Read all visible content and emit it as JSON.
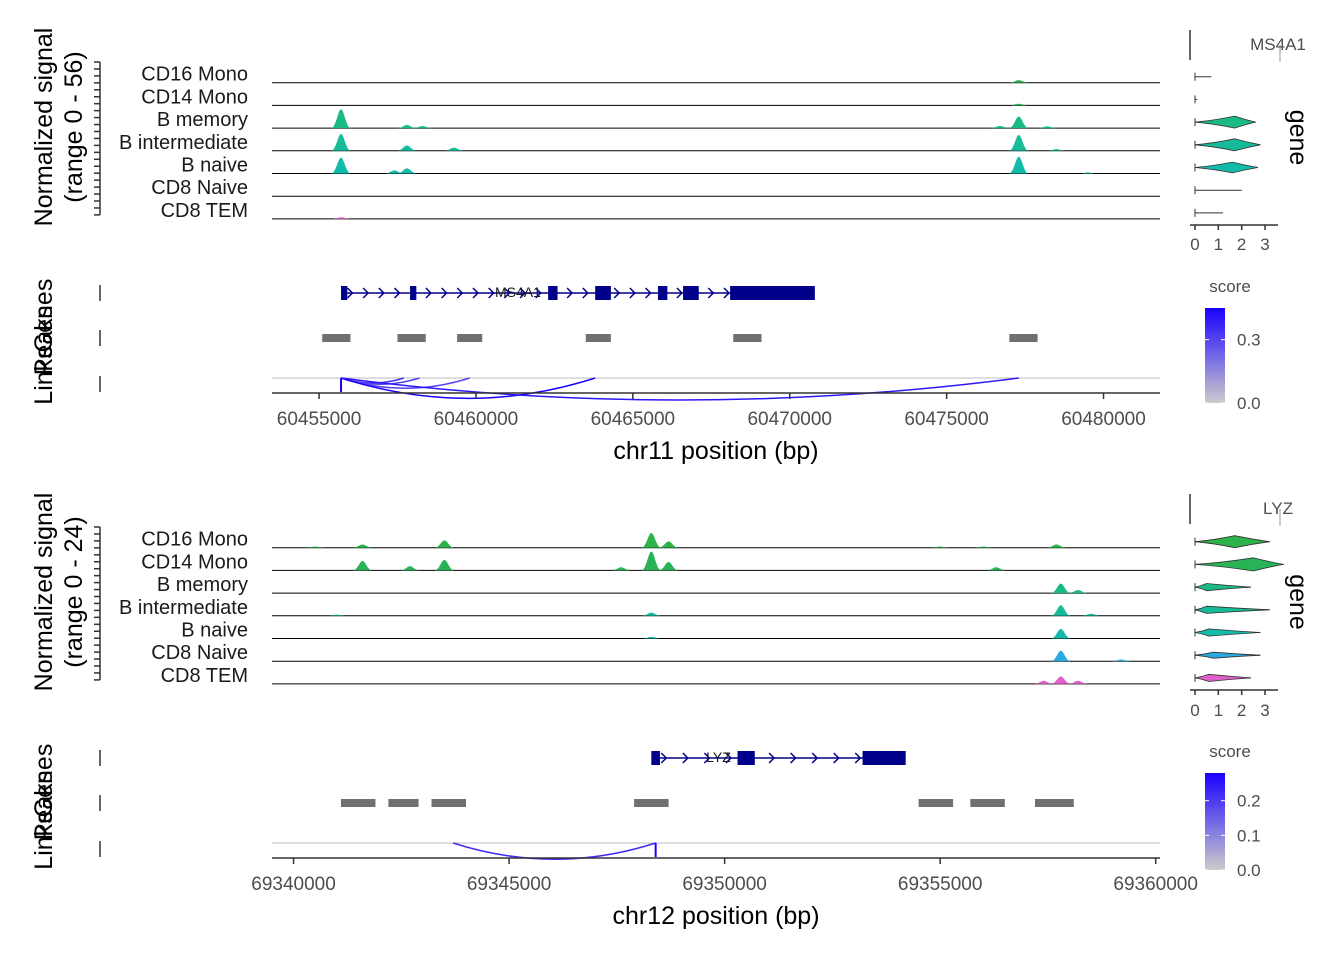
{
  "chart_data": [
    {
      "type": "genome-coverage",
      "xlabel": "chr11 position (bp)",
      "ylabel": "Normalized signal\n(range 0 - 56)",
      "ylabel_lines": [
        "Normalized signal",
        "(range 0 - 56)"
      ],
      "xlim": [
        60453500,
        60481800
      ],
      "x_ticks": [
        60455000,
        60460000,
        60465000,
        60470000,
        60475000,
        60480000
      ],
      "x_tick_labels": [
        "60455000",
        "60460000",
        "60465000",
        "60470000",
        "60475000",
        "60480000"
      ],
      "side_labels": [
        "Genes",
        "Peaks",
        "Links"
      ],
      "groups": [
        {
          "name": "CD16 Mono",
          "color": "#2db34a",
          "peaks": [
            [
              60477300,
              0.12
            ]
          ]
        },
        {
          "name": "CD14 Mono",
          "color": "#28b357",
          "peaks": [
            [
              60477300,
              0.08
            ]
          ]
        },
        {
          "name": "B memory",
          "color": "#1ab986",
          "peaks": [
            [
              60455700,
              0.9
            ],
            [
              60457800,
              0.15
            ],
            [
              60458300,
              0.1
            ],
            [
              60477300,
              0.55
            ],
            [
              60476700,
              0.1
            ],
            [
              60478200,
              0.08
            ]
          ]
        },
        {
          "name": "B intermediate",
          "color": "#16bb9a",
          "peaks": [
            [
              60455700,
              0.8
            ],
            [
              60457800,
              0.25
            ],
            [
              60459300,
              0.15
            ],
            [
              60477300,
              0.75
            ],
            [
              60478500,
              0.08
            ]
          ]
        },
        {
          "name": "B naive",
          "color": "#13bbaa",
          "peaks": [
            [
              60455700,
              0.75
            ],
            [
              60457800,
              0.25
            ],
            [
              60457400,
              0.15
            ],
            [
              60477300,
              0.8
            ],
            [
              60479500,
              0.05
            ]
          ]
        },
        {
          "name": "CD8 Naive",
          "color": "#2aa8e0",
          "peaks": []
        },
        {
          "name": "CD8 TEM",
          "color": "#e05fc8",
          "peaks": [
            [
              60455700,
              0.08
            ]
          ]
        }
      ],
      "gene": {
        "name": "MS4A1",
        "start": 60455700,
        "end": 60470800,
        "exons": [
          [
            60455700,
            60455900
          ],
          [
            60457900,
            60458100
          ],
          [
            60462300,
            60462600
          ],
          [
            60463800,
            60464300
          ],
          [
            60465800,
            60466100
          ],
          [
            60466600,
            60467100
          ],
          [
            60468100,
            60470800
          ]
        ]
      },
      "peaks": [
        [
          60455100,
          60456000
        ],
        [
          60457500,
          60458400
        ],
        [
          60459400,
          60460200
        ],
        [
          60463500,
          60464300
        ],
        [
          60468200,
          60469100
        ],
        [
          60477000,
          60477900
        ]
      ],
      "links": [
        {
          "from": 60455700,
          "to": 60457700,
          "score": 0.35
        },
        {
          "from": 60455700,
          "to": 60458200,
          "score": 0.3
        },
        {
          "from": 60455700,
          "to": 60459800,
          "score": 0.3
        },
        {
          "from": 60455700,
          "to": 60463800,
          "score": 0.45
        },
        {
          "from": 60455700,
          "to": 60477300,
          "score": 0.4
        }
      ],
      "link_score_scale": {
        "title": "score",
        "ticks": [
          0.0,
          0.3
        ],
        "tick_labels": [
          "0.0",
          "0.3"
        ],
        "max": 0.45
      },
      "expression": {
        "title": "MS4A1",
        "side_label": "gene",
        "x_ticks": [
          0,
          1,
          2,
          3
        ],
        "x_tick_labels": [
          "0",
          "1",
          "2",
          "3"
        ],
        "violins": [
          {
            "group": "CD16 Mono",
            "max": 0.7,
            "width": 0.05
          },
          {
            "group": "CD14 Mono",
            "max": 0.1,
            "width": 0.0
          },
          {
            "group": "B memory",
            "max": 2.6,
            "width": 0.5,
            "center": 1.7
          },
          {
            "group": "B intermediate",
            "max": 2.8,
            "width": 0.5,
            "center": 1.7
          },
          {
            "group": "B naive",
            "max": 2.7,
            "width": 0.45,
            "center": 1.6
          },
          {
            "group": "CD8 Naive",
            "max": 2.0,
            "width": 0.0
          },
          {
            "group": "CD8 TEM",
            "max": 1.2,
            "width": 0.05
          }
        ]
      }
    },
    {
      "type": "genome-coverage",
      "xlabel": "chr12 position (bp)",
      "ylabel": "Normalized signal\n(range 0 - 24)",
      "ylabel_lines": [
        "Normalized signal",
        "(range 0 - 24)"
      ],
      "xlim": [
        69339500,
        69360100
      ],
      "x_ticks": [
        69340000,
        69345000,
        69350000,
        69355000,
        69360000
      ],
      "x_tick_labels": [
        "69340000",
        "69345000",
        "69350000",
        "69355000",
        "69360000"
      ],
      "side_labels": [
        "Genes",
        "Peaks",
        "Links"
      ],
      "groups": [
        {
          "name": "CD16 Mono",
          "color": "#2db34a",
          "peaks": [
            [
              69341600,
              0.15
            ],
            [
              69343500,
              0.35
            ],
            [
              69348300,
              0.7
            ],
            [
              69348700,
              0.3
            ],
            [
              69357700,
              0.15
            ],
            [
              69340500,
              0.05
            ],
            [
              69355000,
              0.05
            ],
            [
              69356000,
              0.05
            ]
          ]
        },
        {
          "name": "CD14 Mono",
          "color": "#28b357",
          "peaks": [
            [
              69341600,
              0.45
            ],
            [
              69343500,
              0.5
            ],
            [
              69348300,
              0.9
            ],
            [
              69348700,
              0.4
            ],
            [
              69342700,
              0.2
            ],
            [
              69347600,
              0.15
            ],
            [
              69356300,
              0.15
            ]
          ]
        },
        {
          "name": "B memory",
          "color": "#1ab986",
          "peaks": [
            [
              69357800,
              0.45
            ],
            [
              69358200,
              0.15
            ]
          ]
        },
        {
          "name": "B intermediate",
          "color": "#16bb9a",
          "peaks": [
            [
              69357800,
              0.5
            ],
            [
              69348300,
              0.15
            ],
            [
              69341000,
              0.05
            ],
            [
              69358500,
              0.1
            ]
          ]
        },
        {
          "name": "B naive",
          "color": "#13bbaa",
          "peaks": [
            [
              69357800,
              0.45
            ],
            [
              69348300,
              0.08
            ]
          ]
        },
        {
          "name": "CD8 Naive",
          "color": "#2aa8e0",
          "peaks": [
            [
              69357800,
              0.5
            ],
            [
              69359200,
              0.08
            ]
          ]
        },
        {
          "name": "CD8 TEM",
          "color": "#e05fc8",
          "peaks": [
            [
              69357800,
              0.35
            ],
            [
              69357400,
              0.15
            ],
            [
              69358200,
              0.15
            ]
          ]
        }
      ],
      "gene": {
        "name": "LYZ",
        "start": 69348300,
        "end": 69354200,
        "exons": [
          [
            69348300,
            69348500
          ],
          [
            69350300,
            69350700
          ],
          [
            69353200,
            69354200
          ]
        ]
      },
      "peaks": [
        [
          69341100,
          69341900
        ],
        [
          69342200,
          69342900
        ],
        [
          69343200,
          69344000
        ],
        [
          69347900,
          69348700
        ],
        [
          69354500,
          69355300
        ],
        [
          69355700,
          69356500
        ],
        [
          69357200,
          69358100
        ]
      ],
      "links": [
        {
          "from": 69343700,
          "to": 69348400,
          "score": 0.22
        }
      ],
      "link_score_scale": {
        "title": "score",
        "ticks": [
          0.0,
          0.1,
          0.2
        ],
        "tick_labels": [
          "0.0",
          "0.1",
          "0.2"
        ],
        "max": 0.28
      },
      "expression": {
        "title": "LYZ",
        "side_label": "gene",
        "x_ticks": [
          0,
          1,
          2,
          3
        ],
        "x_tick_labels": [
          "0",
          "1",
          "2",
          "3"
        ],
        "violins": [
          {
            "group": "CD16 Mono",
            "max": 3.2,
            "width": 0.5,
            "center": 1.7
          },
          {
            "group": "CD14 Mono",
            "max": 3.8,
            "width": 0.55,
            "center": 2.5
          },
          {
            "group": "B memory",
            "max": 2.4,
            "width": 0.3,
            "center": 0.5
          },
          {
            "group": "B intermediate",
            "max": 3.2,
            "width": 0.3,
            "center": 0.5
          },
          {
            "group": "B naive",
            "max": 2.8,
            "width": 0.3,
            "center": 0.6
          },
          {
            "group": "CD8 Naive",
            "max": 2.8,
            "width": 0.25,
            "center": 0.8
          },
          {
            "group": "CD8 TEM",
            "max": 2.4,
            "width": 0.3,
            "center": 0.6
          }
        ]
      }
    }
  ]
}
